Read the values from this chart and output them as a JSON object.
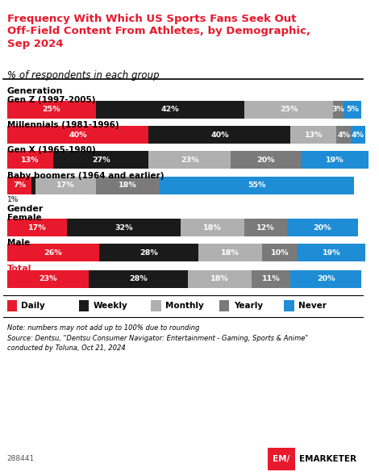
{
  "title": "Frequency With Which US Sports Fans Seek Out\nOff-Field Content From Athletes, by Demographic,\nSep 2024",
  "subtitle": "% of respondents in each group",
  "data": {
    "Gen Z (1997-2005)": [
      25,
      42,
      25,
      3,
      5
    ],
    "Millennials (1981-1996)": [
      40,
      40,
      13,
      4,
      4
    ],
    "Gen X (1965-1980)": [
      13,
      27,
      23,
      20,
      19
    ],
    "Baby boomers (1964 and earlier)": [
      7,
      1,
      17,
      18,
      55
    ],
    "Female": [
      17,
      32,
      18,
      12,
      20
    ],
    "Male": [
      26,
      28,
      18,
      10,
      19
    ],
    "Total": [
      23,
      28,
      18,
      11,
      20
    ]
  },
  "colors": [
    "#e8192c",
    "#1a1a1a",
    "#b0b0b0",
    "#7a7a7a",
    "#1f8dd6"
  ],
  "legend_labels": [
    "Daily",
    "Weekly",
    "Monthly",
    "Yearly",
    "Never"
  ],
  "note": "Note: numbers may not add up to 100% due to rounding\nSource: Dentsu, \"Dentsu Consumer Navigator: Entertainment - Gaming, Sports & Anime\"\nconducted by Toluna, Oct 21, 2024",
  "footer_id": "288441",
  "title_color": "#e8192c",
  "background_color": "#ffffff"
}
